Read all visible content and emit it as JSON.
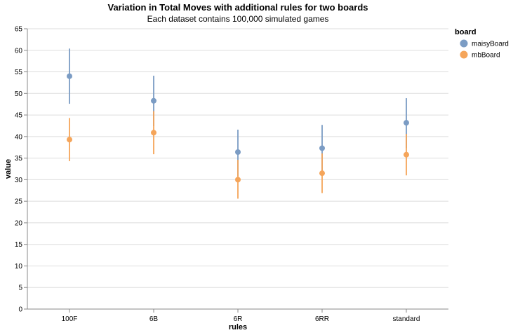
{
  "chart_data": {
    "type": "scatter",
    "title": "Variation in Total Moves with additional rules for two boards",
    "subtitle": "Each dataset contains 100,000 simulated games",
    "xlabel": "rules",
    "ylabel": "value",
    "categories": [
      "100F",
      "6B",
      "6R",
      "6RR",
      "standard"
    ],
    "ylim": [
      0,
      65
    ],
    "yticks": [
      0,
      5,
      10,
      15,
      20,
      25,
      30,
      35,
      40,
      45,
      50,
      55,
      60,
      65
    ],
    "grid": true,
    "legend": {
      "title": "board",
      "placement": "top-right"
    },
    "series": [
      {
        "name": "maisyBoard",
        "color": "#7b9cc4",
        "values": [
          54.0,
          48.3,
          36.4,
          37.3,
          43.2
        ],
        "low": [
          47.6,
          42.4,
          30.8,
          31.6,
          37.3
        ],
        "high": [
          60.4,
          54.1,
          41.6,
          42.7,
          48.9
        ]
      },
      {
        "name": "mbBoard",
        "color": "#f5a55a",
        "values": [
          39.3,
          40.9,
          30.0,
          31.5,
          35.8
        ],
        "low": [
          34.3,
          35.9,
          25.6,
          26.9,
          31.0
        ],
        "high": [
          44.3,
          45.9,
          34.6,
          36.1,
          40.6
        ]
      }
    ]
  }
}
